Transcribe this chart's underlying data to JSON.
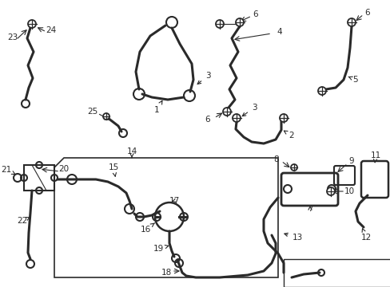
{
  "bg_color": "#ffffff",
  "line_color": "#2a2a2a",
  "lw": 1.4,
  "lw_thick": 2.2,
  "fs": 7.5,
  "figsize": [
    4.89,
    3.6
  ],
  "dpi": 100
}
